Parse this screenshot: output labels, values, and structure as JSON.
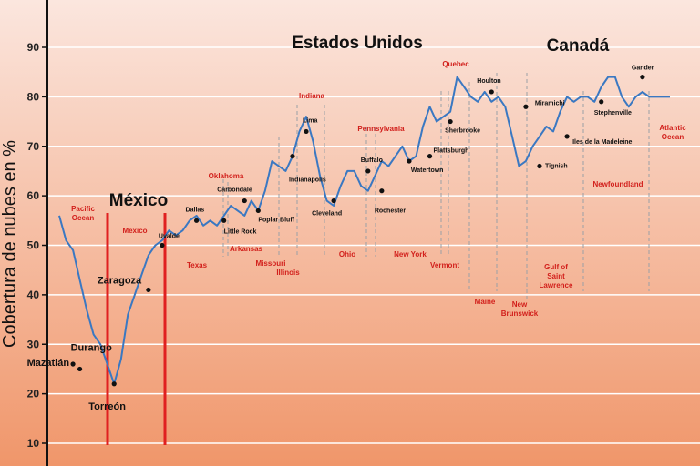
{
  "chart_data": {
    "type": "line",
    "ylabel": "Cobertura de nubes en %",
    "ylim": [
      8,
      100
    ],
    "yticks": [
      10,
      20,
      30,
      40,
      50,
      60,
      70,
      80,
      90
    ],
    "grid": true,
    "colors": {
      "line": "#3a78c2",
      "bg_top": "#fbe6de",
      "bg_bottom": "#f0966a",
      "state": "#d2201c",
      "mexico_lines": "#e02020"
    },
    "regions": [
      {
        "label": "México"
      },
      {
        "label": "Estados Unidos"
      },
      {
        "label": "Canadá"
      }
    ],
    "states": [
      "Pacific Ocean",
      "Mexico",
      "Texas",
      "Oklahoma",
      "Arkansas",
      "Missouri",
      "Illinois",
      "Indiana",
      "Ohio",
      "Pennsylvania",
      "New York",
      "Quebec",
      "Vermont",
      "Maine",
      "New Brunswick",
      "Gulf of Saint Lawrence",
      "Newfoundland",
      "Atlantic Ocean"
    ],
    "cities": [
      {
        "name": "Mazatlán",
        "x": 2,
        "y": 26
      },
      {
        "name": "Durango",
        "x": 3,
        "y": 25
      },
      {
        "name": "Torreón",
        "x": 8,
        "y": 22
      },
      {
        "name": "Zaragoza",
        "x": 13,
        "y": 41
      },
      {
        "name": "Uvalde",
        "x": 15,
        "y": 50
      },
      {
        "name": "Dallas",
        "x": 20,
        "y": 55
      },
      {
        "name": "Little Rock",
        "x": 24,
        "y": 55
      },
      {
        "name": "Carbondale",
        "x": 27,
        "y": 59
      },
      {
        "name": "Poplar Bluff",
        "x": 29,
        "y": 57
      },
      {
        "name": "Indianapolis",
        "x": 34,
        "y": 68
      },
      {
        "name": "Lima",
        "x": 36,
        "y": 73
      },
      {
        "name": "Cleveland",
        "x": 40,
        "y": 59
      },
      {
        "name": "Buffalo",
        "x": 45,
        "y": 65
      },
      {
        "name": "Rochester",
        "x": 47,
        "y": 61
      },
      {
        "name": "Watertown",
        "x": 51,
        "y": 67
      },
      {
        "name": "Plattsburgh",
        "x": 54,
        "y": 68
      },
      {
        "name": "Sherbrooke",
        "x": 57,
        "y": 75
      },
      {
        "name": "Houlton",
        "x": 63,
        "y": 81
      },
      {
        "name": "Miramichi",
        "x": 68,
        "y": 78
      },
      {
        "name": "Tignish",
        "x": 70,
        "y": 66
      },
      {
        "name": "Iles de la Madeleine",
        "x": 74,
        "y": 72
      },
      {
        "name": "Stephenville",
        "x": 79,
        "y": 79
      },
      {
        "name": "Gander",
        "x": 85,
        "y": 84
      }
    ],
    "series": [
      {
        "x": [
          0,
          1,
          2,
          3,
          4,
          5,
          6,
          7,
          8,
          9,
          10,
          11,
          12,
          13,
          14,
          15,
          16,
          17,
          18,
          19,
          20,
          21,
          22,
          23,
          24,
          25,
          26,
          27,
          28,
          29,
          30,
          31,
          32,
          33,
          34,
          35,
          36,
          37,
          38,
          39,
          40,
          41,
          42,
          43,
          44,
          45,
          46,
          47,
          48,
          49,
          50,
          51,
          52,
          53,
          54,
          55,
          56,
          57,
          58,
          59,
          60,
          61,
          62,
          63,
          64,
          65,
          66,
          67,
          68,
          69,
          70,
          71,
          72,
          73,
          74,
          75,
          76,
          77,
          78,
          79,
          80,
          81,
          82,
          83,
          84,
          85,
          86,
          87,
          88,
          89
        ],
        "y": [
          56,
          51,
          49,
          43,
          37,
          32,
          30,
          26,
          22,
          27,
          36,
          40,
          44,
          48,
          50,
          51,
          53,
          52,
          53,
          55,
          56,
          54,
          55,
          54,
          56,
          58,
          57,
          56,
          59,
          57,
          61,
          67,
          66,
          65,
          68,
          73,
          76,
          71,
          64,
          59,
          58,
          62,
          65,
          65,
          62,
          61,
          64,
          67,
          66,
          68,
          70,
          67,
          68,
          74,
          78,
          75,
          76,
          77,
          84,
          82,
          80,
          79,
          81,
          79,
          80,
          78,
          72,
          66,
          67,
          70,
          72,
          74,
          73,
          77,
          80,
          79,
          80,
          80,
          79,
          82,
          84,
          84,
          80,
          78,
          80,
          81,
          80,
          80,
          80,
          80
        ]
      }
    ]
  }
}
